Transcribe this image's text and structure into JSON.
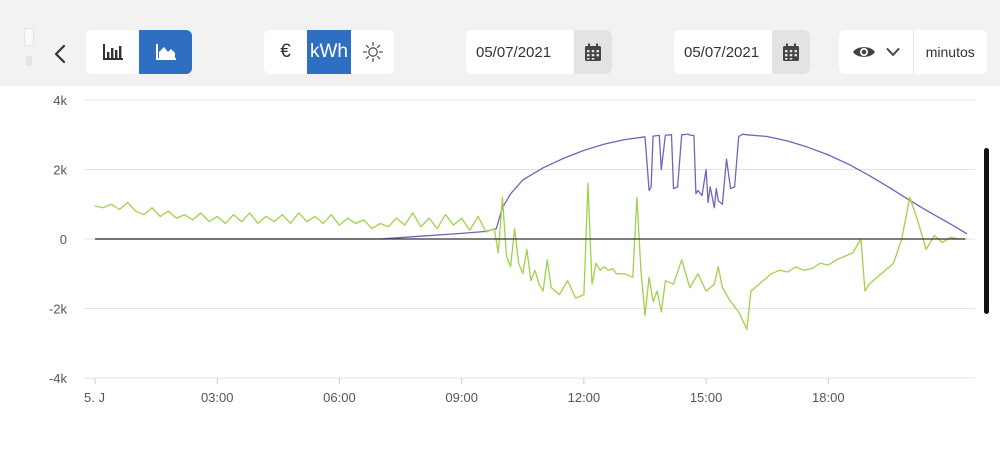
{
  "toolbar": {
    "chart_types": [
      {
        "icon": "bar-chart-icon",
        "active": false
      },
      {
        "icon": "area-chart-icon",
        "active": true
      }
    ],
    "units": [
      {
        "label": "€",
        "active": false
      },
      {
        "label": "kWh",
        "active": true
      },
      {
        "icon": "sun-icon",
        "active": false
      }
    ],
    "date_from": "05/07/2021",
    "date_to": "05/07/2021",
    "resolution_label": "minutos"
  },
  "colors": {
    "accent": "#2f6fc2",
    "production": "#7163bf",
    "grid_balance": "#9fd24a"
  },
  "chart_data": {
    "type": "line",
    "x_unit": "hours",
    "xlim": [
      0,
      21.6
    ],
    "ylim": [
      -4000,
      4000
    ],
    "y_ticks": [
      4000,
      2000,
      0,
      -2000,
      -4000
    ],
    "y_tick_labels": [
      "4k",
      "2k",
      "0",
      "-2k",
      "-4k"
    ],
    "x_ticks": [
      0,
      3,
      6,
      9,
      12,
      15,
      18
    ],
    "x_tick_labels": [
      "5. J",
      "03:00",
      "06:00",
      "09:00",
      "12:00",
      "15:00",
      "18:00"
    ],
    "grid": true,
    "series": [
      {
        "color": "#7163bf",
        "x": [
          0,
          7.0,
          8.0,
          9.0,
          9.6,
          9.85,
          10.0,
          10.2,
          10.5,
          11.0,
          11.5,
          12.0,
          12.5,
          13.0,
          13.5,
          13.6,
          13.65,
          13.7,
          13.85,
          13.9,
          14.0,
          14.15,
          14.2,
          14.3,
          14.4,
          14.5,
          14.55,
          14.6,
          14.7,
          14.75,
          14.8,
          14.9,
          15.0,
          15.05,
          15.1,
          15.2,
          15.25,
          15.3,
          15.4,
          15.5,
          15.6,
          15.7,
          15.8,
          15.9,
          16.0,
          16.5,
          17.0,
          17.5,
          18.0,
          18.5,
          19.0,
          19.5,
          20.0,
          20.5,
          21.0,
          21.4
        ],
        "y": [
          0,
          0,
          80,
          160,
          220,
          300,
          900,
          1300,
          1700,
          2050,
          2320,
          2550,
          2730,
          2860,
          2940,
          1400,
          1500,
          2960,
          2980,
          2000,
          2990,
          3000,
          1450,
          1500,
          3000,
          3010,
          3020,
          2990,
          2980,
          1300,
          1400,
          1250,
          2000,
          1050,
          1500,
          900,
          1450,
          1100,
          1000,
          2300,
          1450,
          1500,
          2950,
          3020,
          3000,
          2950,
          2820,
          2640,
          2420,
          2150,
          1830,
          1480,
          1110,
          760,
          430,
          150
        ]
      },
      {
        "color": "#9fd24a",
        "x": [
          0,
          0.2,
          0.4,
          0.6,
          0.8,
          1.0,
          1.2,
          1.4,
          1.6,
          1.8,
          2.0,
          2.2,
          2.4,
          2.6,
          2.8,
          3.0,
          3.2,
          3.4,
          3.6,
          3.8,
          4.0,
          4.2,
          4.4,
          4.6,
          4.8,
          5.0,
          5.2,
          5.4,
          5.6,
          5.8,
          6.0,
          6.2,
          6.4,
          6.6,
          6.8,
          7.0,
          7.2,
          7.4,
          7.6,
          7.8,
          8.0,
          8.2,
          8.4,
          8.6,
          8.8,
          9.0,
          9.2,
          9.4,
          9.6,
          9.8,
          9.9,
          10.0,
          10.1,
          10.2,
          10.3,
          10.4,
          10.5,
          10.6,
          10.7,
          10.8,
          10.9,
          11.0,
          11.1,
          11.2,
          11.4,
          11.6,
          11.8,
          12.0,
          12.1,
          12.2,
          12.3,
          12.4,
          12.5,
          12.6,
          12.7,
          12.8,
          13.0,
          13.2,
          13.3,
          13.4,
          13.5,
          13.6,
          13.7,
          13.8,
          13.9,
          14.0,
          14.2,
          14.4,
          14.6,
          14.8,
          15.0,
          15.2,
          15.3,
          15.4,
          15.6,
          15.8,
          16.0,
          16.1,
          16.2,
          16.4,
          16.6,
          16.8,
          17.0,
          17.2,
          17.4,
          17.6,
          17.8,
          18.0,
          18.2,
          18.4,
          18.6,
          18.8,
          18.9,
          19.0,
          19.2,
          19.4,
          19.6,
          19.8,
          20.0,
          20.2,
          20.4,
          20.6,
          20.8,
          21.0,
          21.2,
          21.4
        ],
        "y": [
          950,
          900,
          1000,
          850,
          1050,
          800,
          700,
          900,
          650,
          800,
          600,
          700,
          550,
          750,
          500,
          650,
          450,
          700,
          500,
          750,
          450,
          650,
          500,
          700,
          450,
          750,
          500,
          650,
          450,
          700,
          400,
          600,
          450,
          550,
          300,
          450,
          350,
          600,
          400,
          750,
          350,
          600,
          300,
          700,
          400,
          600,
          250,
          650,
          200,
          300,
          -400,
          1200,
          -500,
          -800,
          300,
          -700,
          -1000,
          -300,
          -1200,
          -900,
          -1300,
          -1500,
          -600,
          -1400,
          -1600,
          -1200,
          -1700,
          -1600,
          1600,
          -1300,
          -700,
          -900,
          -800,
          -900,
          -850,
          -1000,
          -1000,
          -1100,
          1200,
          -900,
          -2200,
          -1100,
          -1800,
          -1500,
          -2100,
          -1200,
          -1300,
          -600,
          -1400,
          -1000,
          -1500,
          -1300,
          -800,
          -1400,
          -1800,
          -2100,
          -2600,
          -1500,
          -1400,
          -1200,
          -1000,
          -900,
          -950,
          -800,
          -900,
          -850,
          -700,
          -750,
          -600,
          -500,
          -400,
          0,
          -1500,
          -1300,
          -1100,
          -900,
          -700,
          0,
          1200,
          500,
          -300,
          100,
          -100,
          50,
          0,
          0
        ]
      }
    ]
  }
}
